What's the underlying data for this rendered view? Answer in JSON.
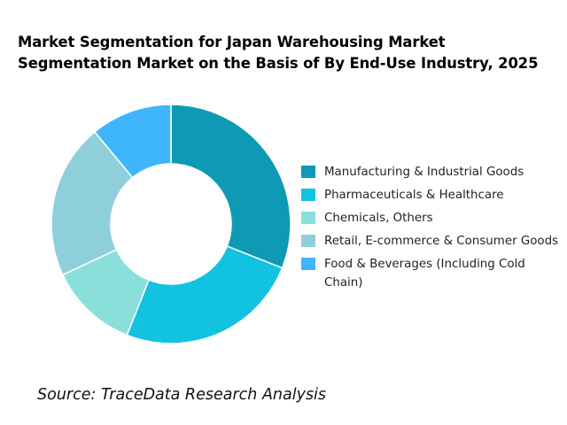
{
  "title": "Market Segmentation for Japan Warehousing Market Segmentation Market on the Basis of By End-Use Industry, 2025",
  "source": "Source: TraceData Research Analysis",
  "chart_data": {
    "type": "pie",
    "donut": true,
    "title": "Market Segmentation for Japan Warehousing Market Segmentation Market on the Basis of By End-Use Industry, 2025",
    "categories": [
      "Manufacturing & Industrial Goods",
      "Pharmaceuticals & Healthcare",
      "Chemicals, Others",
      "Retail, E-commerce & Consumer Goods",
      "Food & Beverages (Including Cold Chain)"
    ],
    "values": [
      31,
      25,
      21,
      12,
      11
    ],
    "colors": [
      "#0e9ab5",
      "#12c2e1",
      "#8fcfdc",
      "#8adfdb",
      "#3fb6fb"
    ],
    "slice_order": [
      0,
      1,
      3,
      2,
      4
    ],
    "legend_position": "right"
  },
  "legend": {
    "items": [
      {
        "label": "Manufacturing & Industrial Goods",
        "color": "#0e9ab5"
      },
      {
        "label": "Pharmaceuticals & Healthcare",
        "color": "#12c2e1"
      },
      {
        "label": "Chemicals, Others",
        "color": "#8adfdb"
      },
      {
        "label": "Retail, E-commerce & Consumer Goods",
        "color": "#8fcfdc"
      },
      {
        "label": "Food & Beverages (Including Cold Chain)",
        "color": "#3fb6fb"
      }
    ]
  }
}
